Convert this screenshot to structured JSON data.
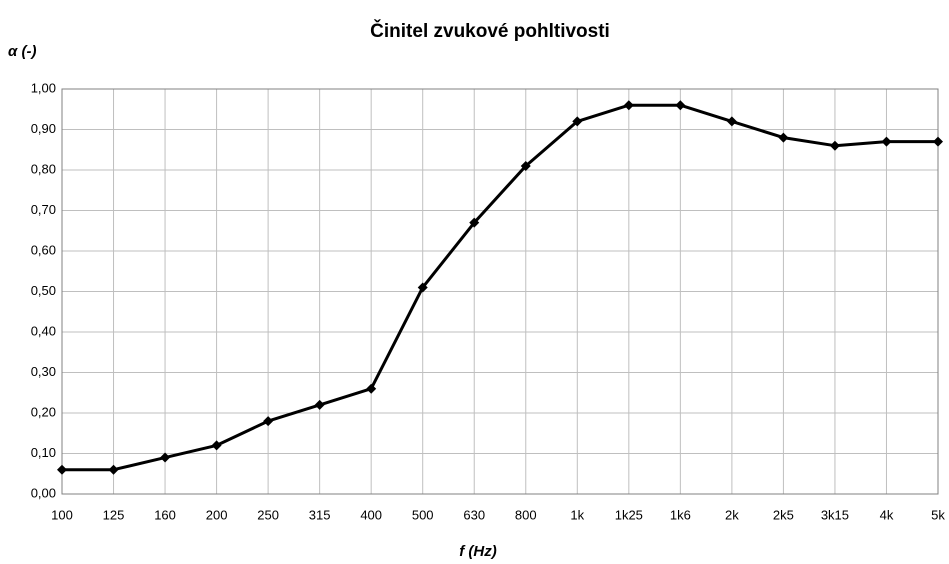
{
  "chart_data": {
    "type": "line",
    "title": "Činitel zvukové pohltivosti",
    "y_label": "α (-)",
    "x_label": "f (Hz)",
    "categories": [
      "100",
      "125",
      "160",
      "200",
      "250",
      "315",
      "400",
      "500",
      "630",
      "800",
      "1k",
      "1k25",
      "1k6",
      "2k",
      "2k5",
      "3k15",
      "4k",
      "5k"
    ],
    "series": [
      {
        "name": "α",
        "color": "#000000",
        "values": [
          0.06,
          0.06,
          0.09,
          0.12,
          0.18,
          0.22,
          0.26,
          0.51,
          0.67,
          0.81,
          0.92,
          0.96,
          0.96,
          0.92,
          0.88,
          0.86,
          0.87,
          0.87
        ]
      }
    ],
    "ylim": [
      0,
      1
    ],
    "yticks": [
      {
        "value": 0,
        "label": "0,00"
      },
      {
        "value": 0.1,
        "label": "0,10"
      },
      {
        "value": 0.2,
        "label": "0,20"
      },
      {
        "value": 0.3,
        "label": "0,30"
      },
      {
        "value": 0.4,
        "label": "0,40"
      },
      {
        "value": 0.5,
        "label": "0,50"
      },
      {
        "value": 0.6,
        "label": "0,60"
      },
      {
        "value": 0.7,
        "label": "0,70"
      },
      {
        "value": 0.8,
        "label": "0,80"
      },
      {
        "value": 0.9,
        "label": "0,90"
      },
      {
        "value": 1,
        "label": "1,00"
      }
    ],
    "grid": true
  }
}
